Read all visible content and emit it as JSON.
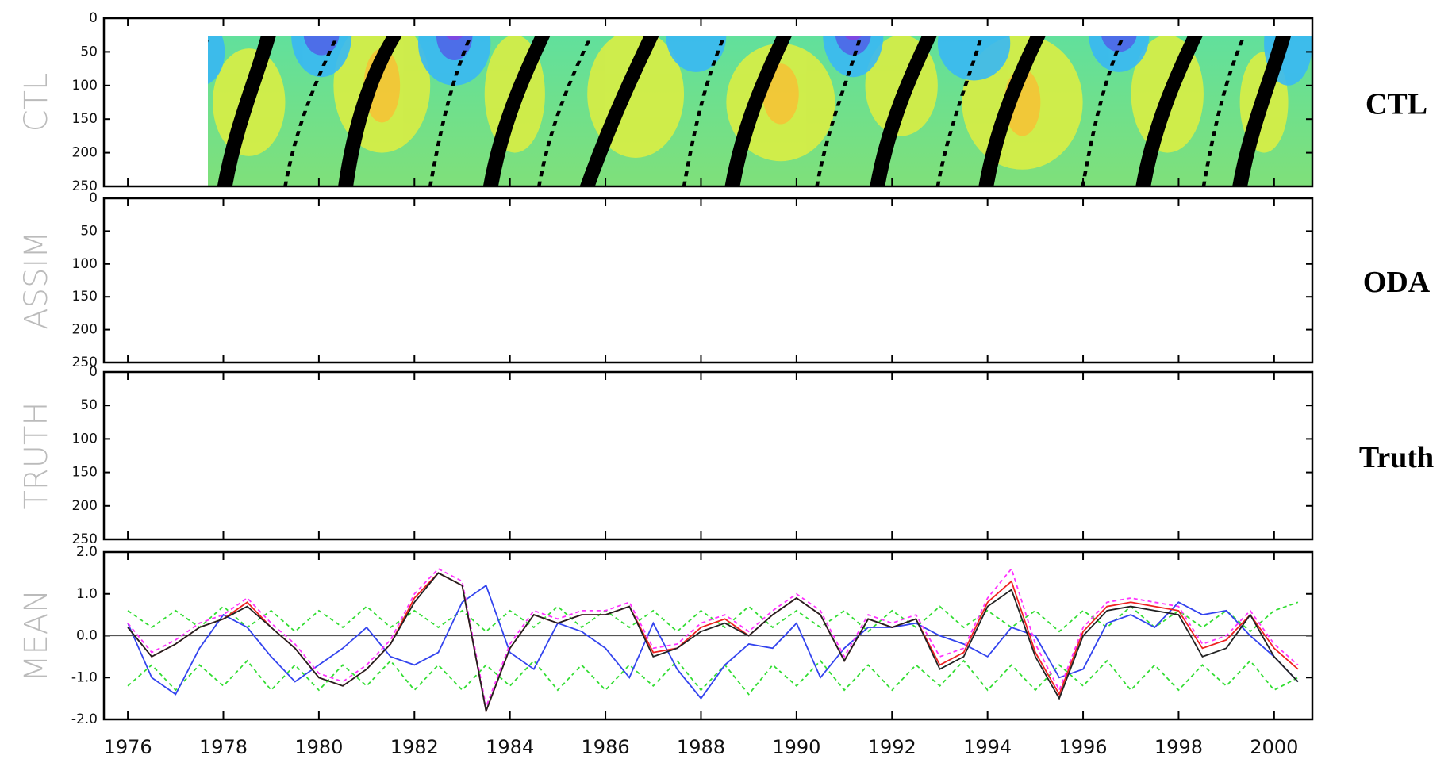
{
  "chart_data": [
    {
      "type": "contour",
      "ylabel": "CTL",
      "annotation": "CTL",
      "ylim": [
        0,
        250
      ],
      "yticks": [
        0,
        50,
        100,
        150,
        200,
        250
      ]
    },
    {
      "type": "contour",
      "ylabel": "ASSIM",
      "annotation": "ODA",
      "ylim": [
        0,
        250
      ],
      "yticks": [
        0,
        50,
        100,
        150,
        200,
        250
      ]
    },
    {
      "type": "contour",
      "ylabel": "TRUTH",
      "annotation": "Truth",
      "ylim": [
        0,
        250
      ],
      "yticks": [
        0,
        50,
        100,
        150,
        200,
        250
      ]
    },
    {
      "type": "line",
      "ylabel": "MEAN",
      "xlim": [
        1975.5,
        2000.8
      ],
      "xticks": [
        1976,
        1978,
        1980,
        1982,
        1984,
        1986,
        1988,
        1990,
        1992,
        1994,
        1996,
        1998,
        2000
      ],
      "ylim": [
        -2,
        2
      ],
      "yticks": [
        {
          "value": -2,
          "label": "-2.0"
        },
        {
          "value": -1,
          "label": "-1.0"
        },
        {
          "value": 0,
          "label": "0.0"
        },
        {
          "value": 1,
          "label": "1.0"
        },
        {
          "value": 2,
          "label": "2.0"
        }
      ],
      "x": [
        1976,
        1976.5,
        1977,
        1977.5,
        1978,
        1978.5,
        1979,
        1979.5,
        1980,
        1980.5,
        1981,
        1981.5,
        1982,
        1982.5,
        1983,
        1983.5,
        1984,
        1984.5,
        1985,
        1985.5,
        1986,
        1986.5,
        1987,
        1987.5,
        1988,
        1988.5,
        1989,
        1989.5,
        1990,
        1990.5,
        1991,
        1991.5,
        1992,
        1992.5,
        1993,
        1993.5,
        1994,
        1994.5,
        1995,
        1995.5,
        1996,
        1996.5,
        1997,
        1997.5,
        1998,
        1998.5,
        1999,
        1999.5,
        2000,
        2000.5
      ],
      "series": [
        {
          "color": "#33dd33",
          "dashed": true,
          "values": [
            0.6,
            0.2,
            0.6,
            0.2,
            0.7,
            0.2,
            0.6,
            0.1,
            0.6,
            0.2,
            0.7,
            0.2,
            0.6,
            0.2,
            0.6,
            0.1,
            0.6,
            0.2,
            0.7,
            0.2,
            0.6,
            0.2,
            0.6,
            0.1,
            0.6,
            0.2,
            0.7,
            0.2,
            0.6,
            0.2,
            0.6,
            0.1,
            0.6,
            0.2,
            0.7,
            0.2,
            0.6,
            0.2,
            0.6,
            0.1,
            0.6,
            0.2,
            0.7,
            0.2,
            0.6,
            0.2,
            0.6,
            0.1,
            0.6,
            0.8
          ]
        },
        {
          "color": "#33dd33",
          "dashed": true,
          "values": [
            -1.2,
            -0.7,
            -1.3,
            -0.7,
            -1.2,
            -0.6,
            -1.3,
            -0.7,
            -1.3,
            -0.7,
            -1.2,
            -0.6,
            -1.3,
            -0.7,
            -1.3,
            -0.7,
            -1.2,
            -0.6,
            -1.3,
            -0.7,
            -1.3,
            -0.7,
            -1.2,
            -0.6,
            -1.3,
            -0.7,
            -1.4,
            -0.7,
            -1.2,
            -0.6,
            -1.3,
            -0.7,
            -1.3,
            -0.7,
            -1.2,
            -0.6,
            -1.3,
            -0.7,
            -1.3,
            -0.7,
            -1.2,
            -0.6,
            -1.3,
            -0.7,
            -1.3,
            -0.7,
            -1.2,
            -0.6,
            -1.3,
            -1.0
          ]
        },
        {
          "color": "#3344ee",
          "dashed": false,
          "values": [
            0.3,
            -1.0,
            -1.4,
            -0.3,
            0.5,
            0.2,
            -0.5,
            -1.1,
            -0.7,
            -0.3,
            0.2,
            -0.5,
            -0.7,
            -0.4,
            0.8,
            1.2,
            -0.4,
            -0.8,
            0.3,
            0.1,
            -0.3,
            -1.0,
            0.3,
            -0.8,
            -1.5,
            -0.7,
            -0.2,
            -0.3,
            0.3,
            -1.0,
            -0.3,
            0.2,
            0.2,
            0.3,
            0.0,
            -0.2,
            -0.5,
            0.2,
            0.0,
            -1.0,
            -0.8,
            0.3,
            0.5,
            0.2,
            0.8,
            0.5,
            0.6,
            0.0,
            -0.5,
            -1.1
          ]
        },
        {
          "color": "#ff33ff",
          "dashed": true,
          "values": [
            0.3,
            -0.4,
            -0.1,
            0.3,
            0.5,
            0.9,
            0.3,
            -0.2,
            -0.9,
            -1.1,
            -0.7,
            -0.1,
            1.0,
            1.6,
            1.3,
            -1.7,
            -0.2,
            0.6,
            0.4,
            0.6,
            0.6,
            0.8,
            -0.3,
            -0.2,
            0.3,
            0.5,
            0.1,
            0.6,
            1.0,
            0.6,
            -0.5,
            0.5,
            0.3,
            0.5,
            -0.5,
            -0.3,
            0.9,
            1.6,
            -0.2,
            -1.3,
            0.2,
            0.8,
            0.9,
            0.8,
            0.7,
            -0.2,
            0.0,
            0.6,
            -0.2,
            -0.7
          ]
        },
        {
          "color": "#ee2222",
          "dashed": false,
          "values": [
            0.2,
            -0.5,
            -0.2,
            0.2,
            0.4,
            0.8,
            0.2,
            -0.3,
            -1.0,
            -1.2,
            -0.8,
            -0.2,
            0.9,
            1.5,
            1.2,
            -1.8,
            -0.3,
            0.5,
            0.3,
            0.5,
            0.5,
            0.7,
            -0.4,
            -0.3,
            0.2,
            0.4,
            0.0,
            0.5,
            0.9,
            0.5,
            -0.6,
            0.4,
            0.2,
            0.4,
            -0.7,
            -0.4,
            0.8,
            1.3,
            -0.4,
            -1.4,
            0.1,
            0.7,
            0.8,
            0.7,
            0.6,
            -0.3,
            -0.1,
            0.5,
            -0.3,
            -0.8
          ]
        },
        {
          "color": "#222222",
          "dashed": false,
          "values": [
            0.2,
            -0.5,
            -0.2,
            0.2,
            0.4,
            0.7,
            0.2,
            -0.3,
            -1.0,
            -1.2,
            -0.8,
            -0.2,
            0.8,
            1.5,
            1.2,
            -1.8,
            -0.3,
            0.5,
            0.3,
            0.5,
            0.5,
            0.7,
            -0.5,
            -0.3,
            0.1,
            0.3,
            0.0,
            0.5,
            0.9,
            0.5,
            -0.6,
            0.4,
            0.2,
            0.4,
            -0.8,
            -0.5,
            0.7,
            1.1,
            -0.5,
            -1.5,
            0.0,
            0.6,
            0.7,
            0.6,
            0.5,
            -0.5,
            -0.3,
            0.5,
            -0.5,
            -1.1
          ]
        }
      ]
    }
  ]
}
